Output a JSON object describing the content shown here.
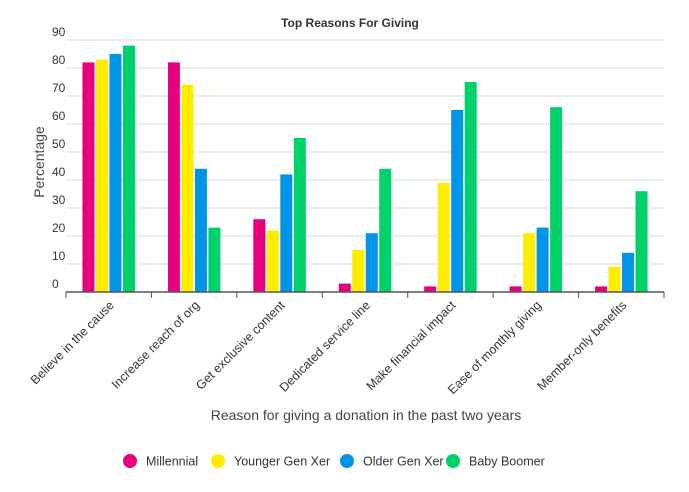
{
  "chart_data": {
    "type": "bar",
    "title": "Top Reasons For Giving",
    "xlabel": "Reason for giving a donation in the past two years",
    "ylabel": "Percentage",
    "ylim": [
      0,
      90
    ],
    "yticks": [
      0,
      10,
      20,
      30,
      40,
      50,
      60,
      70,
      80,
      90
    ],
    "grid": true,
    "legend_position": "bottom",
    "categories": [
      "Believe in the cause",
      "Increase reach of org",
      "Get exclusive content",
      "Dedicated service line",
      "Make financial impact",
      "Ease of monthly giving",
      "Member-only benefits"
    ],
    "series": [
      {
        "name": "Millennial",
        "color": "#e6007e",
        "values": [
          82,
          82,
          26,
          3,
          2,
          2,
          2
        ]
      },
      {
        "name": "Younger Gen Xer",
        "color": "#ffed00",
        "values": [
          83,
          74,
          22,
          15,
          39,
          21,
          9
        ]
      },
      {
        "name": "Older  Gen Xer",
        "color": "#0095e6",
        "values": [
          85,
          44,
          42,
          21,
          65,
          23,
          14
        ]
      },
      {
        "name": "Baby Boomer",
        "color": "#00d26a",
        "values": [
          88,
          23,
          55,
          44,
          75,
          66,
          36
        ]
      }
    ]
  }
}
